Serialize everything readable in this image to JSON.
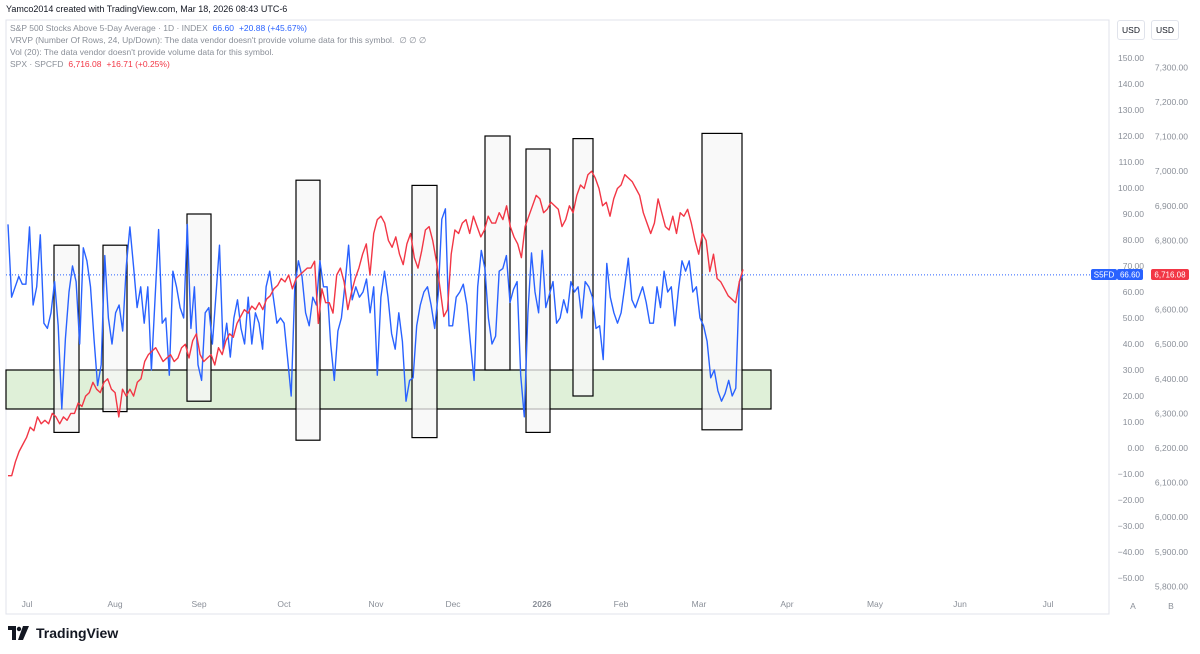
{
  "header": {
    "author_line": "Yamco2014 created with TradingView.com, Mar 18, 2026 08:43 UTC-6"
  },
  "legend": {
    "s5fd": {
      "name": "S&P 500 Stocks Above 5-Day Average · 1D · INDEX",
      "value": "66.60",
      "change": "+20.88 (+45.67%)"
    },
    "vrvp": {
      "name": "VRVP (Number Of Rows, 24, Up/Down): The data vendor doesn't provide volume data for this symbol.",
      "values": "∅ ∅ ∅"
    },
    "vol": {
      "name": "Vol (20): The data vendor doesn't provide volume data for this symbol."
    },
    "spx": {
      "name": "SPX · SPCFD",
      "value": "6,716.08",
      "change": "+16.71 (+0.25%)"
    }
  },
  "units": {
    "left": "USD",
    "right": "USD"
  },
  "bottom_buttons": {
    "a": "A",
    "b": "B"
  },
  "logo": {
    "text": "TradingView"
  },
  "colors": {
    "s5fd": "#2962ff",
    "spx": "#f23645",
    "zone_fill": "#dff0d8",
    "box_fill": "#f7f7f7"
  },
  "badges": {
    "s5fd_label": "S5FD",
    "s5fd_value": "66.60",
    "spx_value": "6,716.08"
  },
  "chart_data": {
    "type": "line",
    "x_labels": [
      "Jul",
      "Aug",
      "Sep",
      "Oct",
      "Nov",
      "Dec",
      "2026",
      "Feb",
      "Mar",
      "Apr",
      "May",
      "Jun",
      "Jul"
    ],
    "y_left": {
      "ticks": [
        150,
        140,
        130,
        120,
        110,
        100,
        90,
        80,
        70,
        60,
        50,
        40,
        30,
        20,
        10,
        0,
        -10,
        -20,
        -30,
        -40,
        -50
      ],
      "labels": [
        "150.00",
        "140.00",
        "130.00",
        "120.00",
        "110.00",
        "100.00",
        "90.00",
        "80.00",
        "70.00",
        "60.00",
        "50.00",
        "40.00",
        "30.00",
        "20.00",
        "10.00",
        "0.00",
        "−10.00",
        "−20.00",
        "−30.00",
        "−40.00",
        "−50.00"
      ]
    },
    "y_right": {
      "ticks": [
        7300,
        7200,
        7100,
        7000,
        6900,
        6800,
        6700,
        6600,
        6500,
        6400,
        6300,
        6200,
        6100,
        6000,
        5900,
        5800
      ],
      "labels": [
        "7,300.00",
        "7,200.00",
        "7,100.00",
        "7,000.00",
        "6,900.00",
        "6,800.00",
        "6,700.00",
        "6,600.00",
        "6,500.00",
        "6,400.00",
        "6,300.00",
        "6,200.00",
        "6,100.00",
        "6,000.00",
        "5,900.00",
        "5,800.00"
      ]
    },
    "series": [
      {
        "name": "S&P 500 Stocks Above 5-Day Average",
        "axis": "left",
        "values": [
          86,
          58,
          62,
          66,
          63,
          63,
          85,
          55,
          62,
          82,
          48,
          46,
          52,
          64,
          47,
          15,
          42,
          60,
          70,
          64,
          40,
          77,
          72,
          62,
          42,
          24,
          32,
          74,
          50,
          40,
          52,
          55,
          45,
          70,
          85,
          70,
          54,
          62,
          48,
          62,
          30,
          57,
          84,
          48,
          50,
          28,
          68,
          62,
          54,
          50,
          86,
          46,
          62,
          32,
          26,
          52,
          54,
          40,
          59,
          78,
          38,
          48,
          35,
          50,
          57,
          46,
          40,
          58,
          40,
          52,
          48,
          38,
          62,
          68,
          58,
          48,
          50,
          48,
          34,
          20,
          62,
          72,
          66,
          52,
          47,
          58,
          55,
          72,
          62,
          62,
          40,
          26,
          45,
          50,
          63,
          78,
          57,
          62,
          58,
          60,
          65,
          52,
          62,
          28,
          58,
          68,
          58,
          44,
          38,
          52,
          41,
          18,
          26,
          27,
          47,
          55,
          60,
          62,
          55,
          46,
          59,
          88,
          92,
          47,
          47,
          58,
          60,
          63,
          55,
          40,
          26,
          62,
          76,
          69,
          50,
          40,
          43,
          68,
          69,
          74,
          56,
          61,
          64,
          28,
          12,
          52,
          75,
          60,
          52,
          76,
          54,
          59,
          64,
          48,
          50,
          57,
          52,
          64,
          60,
          62,
          50,
          64,
          62,
          58,
          46,
          47,
          34,
          71,
          58,
          52,
          48,
          52,
          62,
          73,
          57,
          54,
          58,
          62,
          56,
          48,
          48,
          62,
          54,
          68,
          60,
          62,
          47,
          61,
          72,
          68,
          72,
          60,
          62,
          50,
          47,
          41,
          27,
          30,
          22,
          18,
          21,
          26,
          20,
          23,
          64,
          66.6
        ]
      },
      {
        "name": "SPX",
        "axis": "right",
        "values": [
          6120,
          6120,
          6160,
          6190,
          6210,
          6230,
          6260,
          6250,
          6290,
          6270,
          6280,
          6270,
          6300,
          6290,
          6270,
          6290,
          6280,
          6300,
          6300,
          6330,
          6320,
          6350,
          6360,
          6390,
          6370,
          6360,
          6390,
          6400,
          6370,
          6360,
          6290,
          6370,
          6350,
          6370,
          6350,
          6390,
          6400,
          6450,
          6470,
          6480,
          6490,
          6470,
          6450,
          6460,
          6470,
          6450,
          6460,
          6490,
          6500,
          6460,
          6510,
          6530,
          6470,
          6450,
          6460,
          6470,
          6440,
          6490,
          6470,
          6510,
          6530,
          6520,
          6560,
          6580,
          6600,
          6590,
          6610,
          6600,
          6620,
          6600,
          6630,
          6640,
          6660,
          6670,
          6690,
          6680,
          6700,
          6660,
          6690,
          6700,
          6710,
          6720,
          6720,
          6740,
          6560,
          6660,
          6620,
          6620,
          6590,
          6700,
          6720,
          6680,
          6600,
          6650,
          6690,
          6720,
          6760,
          6790,
          6700,
          6820,
          6860,
          6870,
          6850,
          6800,
          6780,
          6810,
          6760,
          6730,
          6790,
          6820,
          6750,
          6720,
          6770,
          6830,
          6840,
          6800,
          6740,
          6660,
          6580,
          6600,
          6760,
          6830,
          6820,
          6850,
          6860,
          6820,
          6870,
          6840,
          6810,
          6830,
          6870,
          6850,
          6850,
          6880,
          6860,
          6900,
          6840,
          6810,
          6790,
          6750,
          6840,
          6870,
          6900,
          6930,
          6920,
          6880,
          6890,
          6910,
          6900,
          6890,
          6840,
          6860,
          6900,
          6880,
          6930,
          6960,
          6950,
          6990,
          7000,
          6980,
          6950,
          6900,
          6910,
          6870,
          6920,
          6950,
          6960,
          6990,
          6980,
          6970,
          6950,
          6930,
          6880,
          6850,
          6820,
          6850,
          6920,
          6880,
          6840,
          6830,
          6870,
          6820,
          6880,
          6870,
          6890,
          6850,
          6800,
          6760,
          6820,
          6800,
          6710,
          6760,
          6690,
          6680,
          6660,
          6640,
          6630,
          6620,
          6680,
          6716.08
        ]
      }
    ],
    "annotations": {
      "zone": {
        "y_from": 15,
        "y_to": 30
      },
      "boxes": [
        {
          "y_from": 6,
          "y_to": 78
        },
        {
          "y_from": 14,
          "y_to": 78
        },
        {
          "y_from": 18,
          "y_to": 90
        },
        {
          "y_from": 3,
          "y_to": 103
        },
        {
          "y_from": 4,
          "y_to": 101
        },
        {
          "y_from": 30,
          "y_to": 120
        },
        {
          "y_from": 6,
          "y_to": 115
        },
        {
          "y_from": 20,
          "y_to": 119
        },
        {
          "y_from": 7,
          "y_to": 121
        }
      ]
    }
  }
}
